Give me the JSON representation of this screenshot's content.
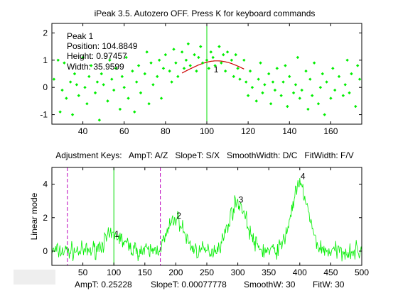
{
  "window_title": "iPeak 3.5. Autozero OFF. Press K for keyboard commands",
  "colors": {
    "data": "#00ee00",
    "fit": "#cc0000",
    "peak_line": "#00dd00",
    "window_marker": "#bb00bb",
    "axis": "#000000",
    "background": "#ffffff"
  },
  "status": {
    "ampt": "AmpT: 0.25228",
    "slopet": "SlopeT: 0.00077778",
    "smoothw": "SmoothW: 30",
    "fitw": "FitW: 30"
  },
  "chart_data": [
    {
      "type": "scatter",
      "title": "iPeak 3.5. Autozero OFF. Press K for keyboard commands",
      "xlim": [
        25,
        175
      ],
      "ylim": [
        -1.35,
        2.35
      ],
      "xticks": [
        40,
        60,
        80,
        100,
        120,
        140,
        160
      ],
      "yticks": [
        -1,
        0,
        1,
        2
      ],
      "annotation_lines": [
        "Peak 1",
        "Position: 104.8849",
        "Height: 0.97457",
        "Width: 35.9599"
      ],
      "peak_number": "1",
      "peak_label": {
        "x": 104.5,
        "y": 0.55
      },
      "peak_marker_x": 100,
      "fit": {
        "center": 104.8849,
        "height": 0.97457,
        "width": 35.9599,
        "x_start": 88,
        "x_end": 118
      },
      "x": [
        26,
        28,
        29,
        30,
        31,
        32,
        34,
        35,
        36,
        37,
        38,
        40,
        41,
        42,
        43,
        44,
        46,
        47,
        48,
        49,
        50,
        52,
        53,
        54,
        55,
        56,
        58,
        59,
        60,
        61,
        62,
        64,
        65,
        66,
        67,
        68,
        70,
        71,
        72,
        73,
        74,
        76,
        77,
        78,
        79,
        80,
        82,
        83,
        84,
        85,
        86,
        88,
        89,
        90,
        91,
        92,
        94,
        95,
        96,
        97,
        98,
        100,
        101,
        102,
        103,
        104,
        106,
        107,
        108,
        109,
        110,
        112,
        113,
        114,
        115,
        116,
        118,
        119,
        120,
        121,
        122,
        124,
        125,
        126,
        127,
        128,
        130,
        131,
        132,
        133,
        134,
        136,
        137,
        138,
        139,
        140,
        142,
        143,
        144,
        145,
        146,
        148,
        149,
        150,
        151,
        152,
        154,
        155,
        156,
        157,
        158,
        160,
        161,
        162,
        163,
        164,
        166,
        167,
        168,
        169,
        170,
        172,
        173,
        174
      ],
      "y": [
        0.3,
        1.0,
        -0.9,
        -0.1,
        0.9,
        -0.4,
        0.2,
        -1.0,
        0.5,
        0.1,
        -0.3,
        1.1,
        0.0,
        -0.6,
        0.4,
        0.8,
        -0.2,
        0.2,
        -1.2,
        0.5,
        0.1,
        -0.5,
        1.0,
        0.3,
        -0.1,
        0.7,
        -0.8,
        0.4,
        0.0,
        1.1,
        -0.4,
        0.6,
        -0.9,
        0.2,
        0.8,
        -0.2,
        0.5,
        1.3,
        -0.6,
        0.9,
        0.1,
        0.4,
        1.0,
        -0.4,
        0.7,
        1.2,
        0.6,
        0.2,
        1.4,
        0.9,
        0.4,
        1.3,
        0.7,
        1.0,
        1.6,
        0.8,
        1.2,
        0.6,
        1.1,
        1.5,
        0.9,
        1.0,
        0.7,
        1.3,
        1.1,
        0.8,
        1.5,
        0.9,
        1.2,
        0.6,
        1.3,
        1.0,
        0.4,
        1.2,
        0.7,
        0.3,
        1.0,
        0.2,
        -0.3,
        0.6,
        0.0,
        -0.5,
        0.3,
        0.9,
        -0.2,
        0.1,
        0.5,
        -0.6,
        0.2,
        -0.1,
        0.7,
        -0.3,
        0.2,
        0.8,
        -0.7,
        0.4,
        -0.2,
        0.1,
        1.1,
        -0.4,
        -0.1,
        0.6,
        -0.8,
        0.3,
        -0.3,
        0.9,
        -0.6,
        0.0,
        0.5,
        -1.0,
        0.2,
        -0.4,
        0.7,
        -0.1,
        -1.4,
        0.4,
        -0.3,
        0.1,
        1.0,
        -0.2,
        0.5,
        -0.7,
        0.8,
        0.3
      ]
    },
    {
      "type": "line",
      "title": "Adjustment Keys:   AmpT: A/Z   SlopeT: S/X   SmoothWidth: D/C   FitWidth: F/V",
      "ylabel": "Linear mode",
      "xlim": [
        0,
        500
      ],
      "ylim": [
        -0.85,
        5.0
      ],
      "xticks": [
        50,
        100,
        150,
        200,
        250,
        300,
        350,
        400,
        450,
        500
      ],
      "yticks": [
        0,
        2,
        4
      ],
      "peak_line_x": 100,
      "window_markers_x": [
        25,
        175
      ],
      "peak_labels": [
        {
          "label": "1",
          "x": 105,
          "y": 0.85
        },
        {
          "label": "2",
          "x": 205,
          "y": 1.95
        },
        {
          "label": "3",
          "x": 305,
          "y": 2.9
        },
        {
          "label": "4",
          "x": 405,
          "y": 4.3
        }
      ],
      "peaks": [
        {
          "center": 100,
          "height": 0.95,
          "width": 36
        },
        {
          "center": 200,
          "height": 1.95,
          "width": 30
        },
        {
          "center": 300,
          "height": 2.9,
          "width": 34
        },
        {
          "center": 400,
          "height": 3.9,
          "width": 32
        }
      ],
      "noise_amplitude": 0.32,
      "sample_step": 1
    }
  ]
}
